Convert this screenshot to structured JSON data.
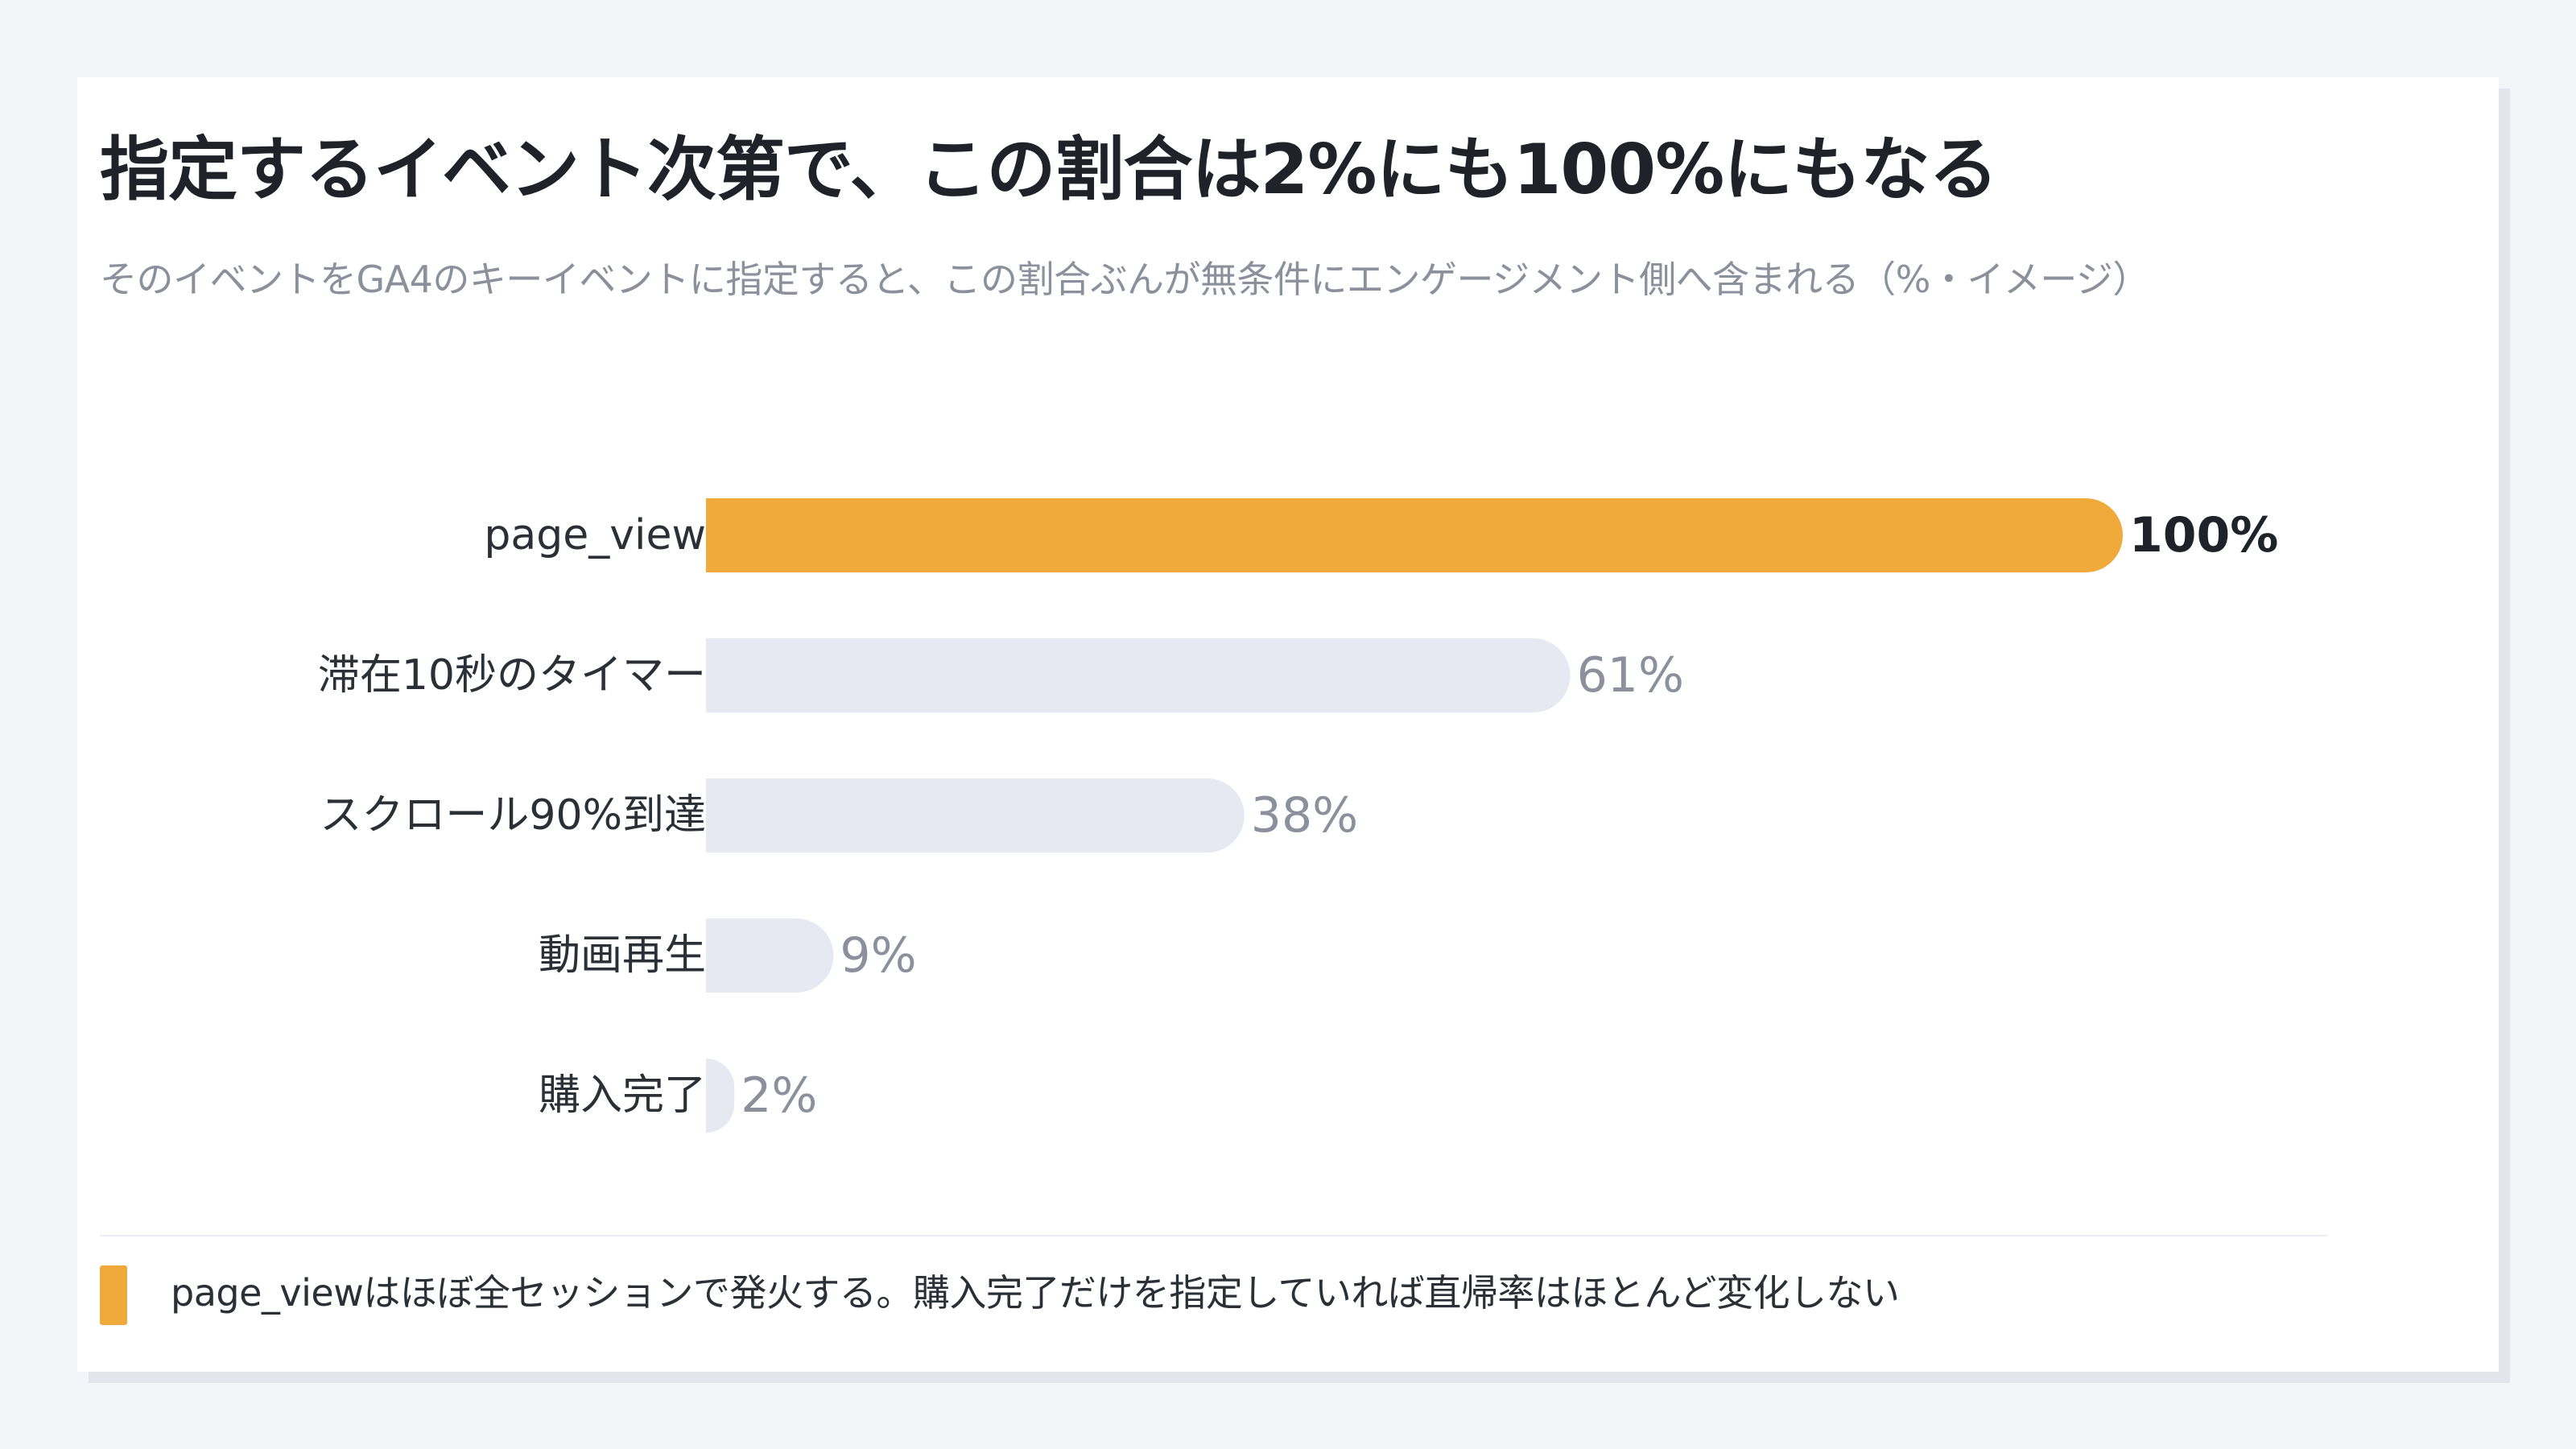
{
  "title": "指定するイベント次第で、この割合は2%にも100%にもなる",
  "subtitle": "そのイベントをGA4のキーイベントに指定すると、この割合ぶんが無条件にエンゲージメント側へ含まれる（%・イメージ）",
  "chart_data": {
    "type": "bar",
    "orientation": "horizontal",
    "categories": [
      "page_view",
      "滞在10秒のタイマー",
      "スクロール90%到達",
      "動画再生",
      "購入完了"
    ],
    "values": [
      100,
      61,
      38,
      9,
      2
    ],
    "value_labels": [
      "100%",
      "61%",
      "38%",
      "9%",
      "2%"
    ],
    "xlim": [
      0,
      100
    ],
    "highlight_index": 0,
    "colors": {
      "highlight": "#f0a93b",
      "default": "#e6e9f1"
    },
    "grid": false,
    "legend": "none"
  },
  "note": {
    "text": "page_viewはほぼ全セッションで発火する。購入完了だけを指定していれば直帰率はほとんど変化しない",
    "color": "#f0a93b"
  }
}
